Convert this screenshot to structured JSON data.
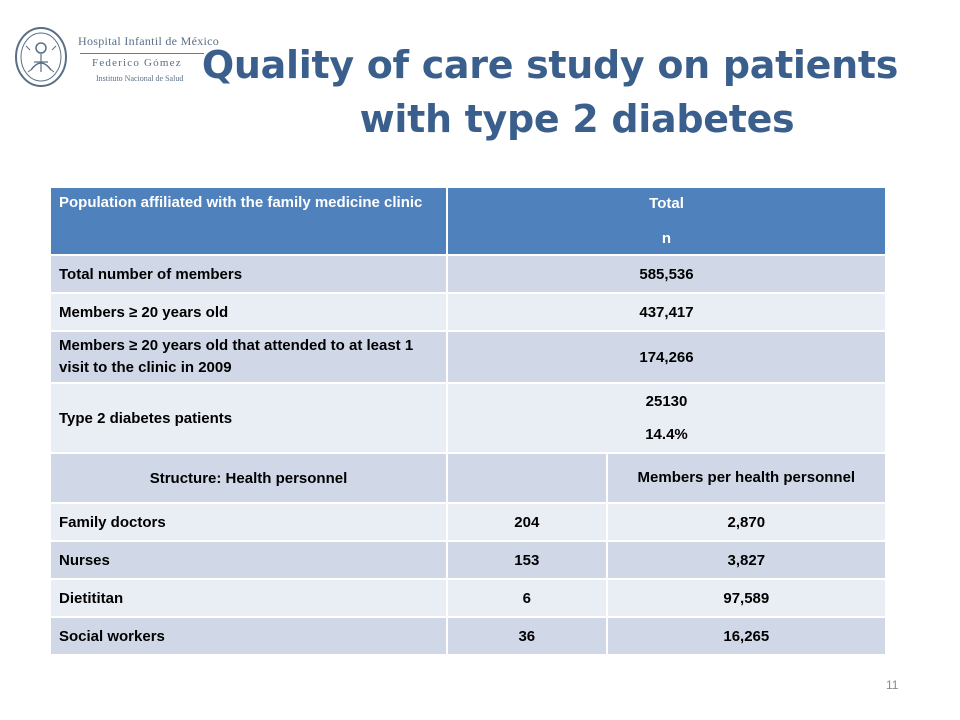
{
  "logo": {
    "line1": "Hospital Infantil de México",
    "line2": "Federico Gómez",
    "line3": "Instituto Nacional de Salud",
    "color": "#5a6f86"
  },
  "title": {
    "line1": "Quality of care study on patients",
    "line2": "with type 2 diabetes",
    "color": "#3a5f8c"
  },
  "table": {
    "header": {
      "population_label": "Population affiliated with the family medicine clinic",
      "total_label": "Total",
      "n_label": "n",
      "color": "#4f81bd"
    },
    "population_rows": [
      {
        "label": "Total number of members",
        "value": "585,536"
      },
      {
        "label": "Members ≥ 20 years old",
        "value": "437,417"
      },
      {
        "label": "Members ≥ 20 years old that attended to at least 1 visit to the clinic in 2009",
        "value": "174,266"
      },
      {
        "label": "Type 2 diabetes patients",
        "value": "25130",
        "percent": "14.4%"
      }
    ],
    "structure_header": {
      "label": "Structure: Health personnel",
      "ratio_label": "Members per health personnel"
    },
    "personnel_rows": [
      {
        "label": "Family doctors",
        "count": "204",
        "ratio": "2,870"
      },
      {
        "label": "Nurses",
        "count": "153",
        "ratio": "3,827"
      },
      {
        "label": "Dietititan",
        "count": "6",
        "ratio": "97,589"
      },
      {
        "label": "Social workers",
        "count": "36",
        "ratio": "16,265"
      }
    ]
  },
  "page_number": "11"
}
